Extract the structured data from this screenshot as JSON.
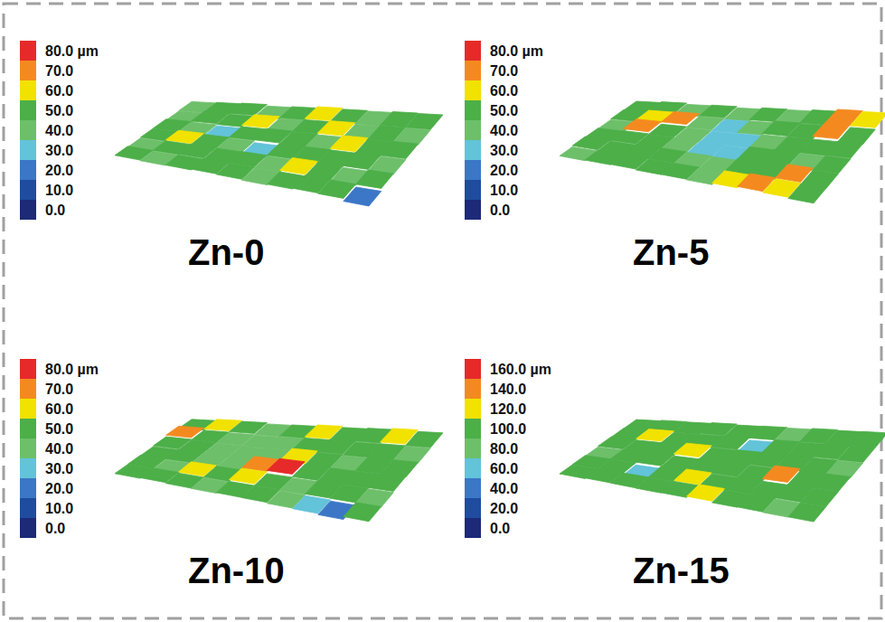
{
  "chart_data": [
    {
      "type": "surface",
      "title": "Zn-0",
      "colors": [
        "#1c2a78",
        "#1f4c9e",
        "#3b77c6",
        "#62c3d9",
        "#6dbf6a",
        "#4caf48",
        "#f1e200",
        "#f48a1f",
        "#e62a2a"
      ],
      "colorbar": {
        "range": [
          0,
          80
        ],
        "ticks": [
          {
            "value": 0,
            "label": "0.0"
          },
          {
            "value": 10,
            "label": "10.0"
          },
          {
            "value": 20,
            "label": "20.0"
          },
          {
            "value": 30,
            "label": "30.0"
          },
          {
            "value": 40,
            "label": "40.0"
          },
          {
            "value": 50,
            "label": "50.0"
          },
          {
            "value": 60,
            "label": "60.0"
          },
          {
            "value": 70,
            "label": "70.0"
          },
          {
            "value": 80,
            "label": "80.0 µm"
          }
        ]
      },
      "cells": [
        [
          45,
          50,
          55,
          42,
          48,
          60,
          50,
          45,
          52,
          48
        ],
        [
          40,
          55,
          48,
          62,
          45,
          50,
          58,
          42,
          50,
          45
        ],
        [
          50,
          45,
          35,
          50,
          55,
          48,
          45,
          60,
          48,
          52
        ],
        [
          48,
          58,
          50,
          45,
          30,
          52,
          50,
          48,
          55,
          45
        ],
        [
          42,
          50,
          55,
          48,
          52,
          45,
          62,
          50,
          40,
          50
        ],
        [
          50,
          45,
          48,
          55,
          50,
          42,
          48,
          55,
          50,
          25
        ]
      ]
    },
    {
      "type": "surface",
      "title": "Zn-5",
      "colors": [
        "#1c2a78",
        "#1f4c9e",
        "#3b77c6",
        "#62c3d9",
        "#6dbf6a",
        "#4caf48",
        "#f1e200",
        "#f48a1f",
        "#e62a2a"
      ],
      "colorbar": {
        "range": [
          0,
          80
        ],
        "ticks": [
          {
            "value": 0,
            "label": "0.0"
          },
          {
            "value": 10,
            "label": "10.0"
          },
          {
            "value": 20,
            "label": "20.0"
          },
          {
            "value": 30,
            "label": "30.0"
          },
          {
            "value": 40,
            "label": "40.0"
          },
          {
            "value": 50,
            "label": "50.0"
          },
          {
            "value": 60,
            "label": "60.0"
          },
          {
            "value": 70,
            "label": "70.0"
          },
          {
            "value": 80,
            "label": "80.0 µm"
          }
        ]
      },
      "cells": [
        [
          48,
          55,
          45,
          50,
          38,
          50,
          45,
          55,
          72,
          65
        ],
        [
          52,
          65,
          70,
          45,
          35,
          40,
          55,
          50,
          75,
          50
        ],
        [
          45,
          72,
          50,
          40,
          30,
          35,
          45,
          48,
          50,
          55
        ],
        [
          50,
          55,
          48,
          45,
          35,
          32,
          48,
          52,
          45,
          50
        ],
        [
          55,
          48,
          52,
          50,
          45,
          40,
          50,
          55,
          68,
          48
        ],
        [
          45,
          50,
          55,
          48,
          50,
          45,
          58,
          70,
          60,
          50
        ]
      ]
    },
    {
      "type": "surface",
      "title": "Zn-10",
      "colors": [
        "#1c2a78",
        "#1f4c9e",
        "#3b77c6",
        "#62c3d9",
        "#6dbf6a",
        "#4caf48",
        "#f1e200",
        "#f48a1f",
        "#e62a2a"
      ],
      "colorbar": {
        "range": [
          0,
          80
        ],
        "ticks": [
          {
            "value": 0,
            "label": "0.0"
          },
          {
            "value": 10,
            "label": "10.0"
          },
          {
            "value": 20,
            "label": "20.0"
          },
          {
            "value": 30,
            "label": "30.0"
          },
          {
            "value": 40,
            "label": "40.0"
          },
          {
            "value": 50,
            "label": "50.0"
          },
          {
            "value": 60,
            "label": "60.0"
          },
          {
            "value": 70,
            "label": "70.0"
          },
          {
            "value": 80,
            "label": "80.0 µm"
          }
        ]
      },
      "cells": [
        [
          50,
          62,
          55,
          45,
          48,
          60,
          50,
          55,
          65,
          50
        ],
        [
          70,
          50,
          45,
          40,
          45,
          50,
          55,
          48,
          50,
          45
        ],
        [
          55,
          48,
          42,
          38,
          45,
          62,
          50,
          45,
          52,
          50
        ],
        [
          48,
          50,
          45,
          40,
          70,
          78,
          55,
          48,
          50,
          55
        ],
        [
          52,
          45,
          58,
          50,
          65,
          50,
          45,
          50,
          48,
          45
        ],
        [
          50,
          55,
          48,
          45,
          50,
          48,
          40,
          35,
          25,
          50
        ]
      ]
    },
    {
      "type": "surface",
      "title": "Zn-15",
      "colors": [
        "#1c2a78",
        "#1f4c9e",
        "#3b77c6",
        "#62c3d9",
        "#6dbf6a",
        "#4caf48",
        "#f1e200",
        "#f48a1f",
        "#e62a2a"
      ],
      "colorbar": {
        "range": [
          0,
          160
        ],
        "ticks": [
          {
            "value": 0,
            "label": "0.0"
          },
          {
            "value": 20,
            "label": "20.0"
          },
          {
            "value": 40,
            "label": "40.0"
          },
          {
            "value": 60,
            "label": "60.0"
          },
          {
            "value": 80,
            "label": "80.0"
          },
          {
            "value": 100,
            "label": "100.0"
          },
          {
            "value": 120,
            "label": "120.0"
          },
          {
            "value": 140,
            "label": "140.0"
          },
          {
            "value": 160,
            "label": "160.0 µm"
          }
        ]
      },
      "cells": [
        [
          95,
          105,
          100,
          110,
          95,
          100,
          90,
          105,
          95,
          100
        ],
        [
          100,
          120,
          95,
          100,
          105,
          60,
          100,
          95,
          110,
          100
        ],
        [
          105,
          95,
          100,
          130,
          95,
          100,
          105,
          100,
          95,
          90
        ],
        [
          90,
          100,
          110,
          95,
          100,
          105,
          95,
          140,
          100,
          105
        ],
        [
          100,
          95,
          60,
          100,
          115,
          95,
          100,
          95,
          105,
          100
        ],
        [
          95,
          105,
          100,
          95,
          100,
          120,
          95,
          100,
          90,
          95
        ]
      ]
    }
  ]
}
